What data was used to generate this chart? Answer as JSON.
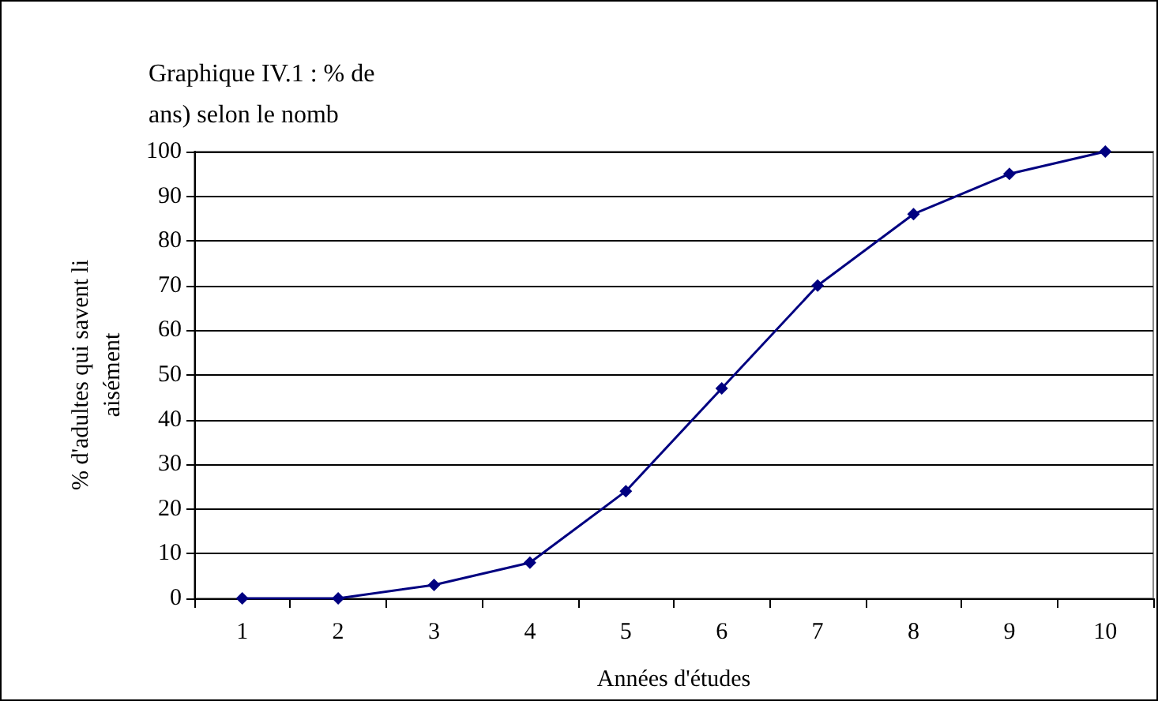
{
  "chart_data": {
    "type": "line",
    "title": "Graphique IV.1 : % de\nans) selon le nomb",
    "xlabel": "Années d'études",
    "ylabel": "% d'adultes qui savent li\naisément",
    "categories": [
      "1",
      "2",
      "3",
      "4",
      "5",
      "6",
      "7",
      "8",
      "9",
      "10"
    ],
    "series": [
      {
        "color": "#000080",
        "values": [
          0,
          0,
          3,
          8,
          24,
          47,
          70,
          86,
          95,
          100
        ]
      }
    ],
    "ylim": [
      0,
      100
    ],
    "yticks": [
      0,
      10,
      20,
      30,
      40,
      50,
      60,
      70,
      80,
      90,
      100
    ],
    "grid": "y",
    "marker": "diamond",
    "line_style": "solid"
  }
}
